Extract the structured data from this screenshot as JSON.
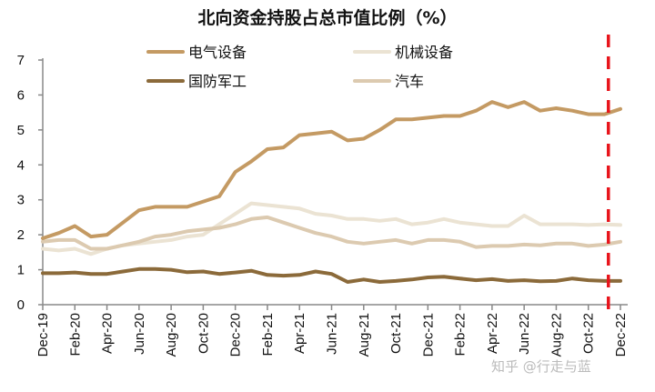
{
  "chart_data": {
    "type": "line",
    "title": "北向资金持股占总市值比例（%）",
    "xlabel": "",
    "ylabel": "",
    "ylim": [
      0,
      7
    ],
    "yticks": [
      0,
      1,
      2,
      3,
      4,
      5,
      6,
      7
    ],
    "x": [
      "Dec-19",
      "Jan-20",
      "Feb-20",
      "Mar-20",
      "Apr-20",
      "May-20",
      "Jun-20",
      "Jul-20",
      "Aug-20",
      "Sep-20",
      "Oct-20",
      "Nov-20",
      "Dec-20",
      "Jan-21",
      "Feb-21",
      "Mar-21",
      "Apr-21",
      "May-21",
      "Jun-21",
      "Jul-21",
      "Aug-21",
      "Sep-21",
      "Oct-21",
      "Nov-21",
      "Dec-21",
      "Jan-22",
      "Feb-22",
      "Mar-22",
      "Apr-22",
      "May-22",
      "Jun-22",
      "Jul-22",
      "Aug-22",
      "Sep-22",
      "Oct-22",
      "Nov-22",
      "Dec-22"
    ],
    "xtick_labels": [
      "Dec-19",
      "Feb-20",
      "Apr-20",
      "Jun-20",
      "Aug-20",
      "Oct-20",
      "Dec-20",
      "Feb-21",
      "Apr-21",
      "Jun-21",
      "Aug-21",
      "Oct-21",
      "Dec-21",
      "Feb-22",
      "Apr-22",
      "Jun-22",
      "Aug-22",
      "Oct-22",
      "Dec-22"
    ],
    "grid": false,
    "legend_placement": "top",
    "series": [
      {
        "name": "电气设备",
        "color": "#c49a63",
        "values": [
          1.9,
          2.05,
          2.25,
          1.95,
          2.0,
          2.35,
          2.7,
          2.8,
          2.8,
          2.8,
          2.95,
          3.1,
          3.8,
          4.1,
          4.45,
          4.5,
          4.85,
          4.9,
          4.95,
          4.7,
          4.75,
          5.0,
          5.3,
          5.3,
          5.35,
          5.4,
          5.4,
          5.55,
          5.8,
          5.65,
          5.8,
          5.55,
          5.62,
          5.55,
          5.45,
          5.45,
          5.6
        ]
      },
      {
        "name": "机械设备",
        "color": "#ebe3d3",
        "values": [
          1.6,
          1.55,
          1.6,
          1.45,
          1.6,
          1.7,
          1.75,
          1.8,
          1.85,
          1.95,
          2.0,
          2.3,
          2.6,
          2.9,
          2.85,
          2.8,
          2.75,
          2.6,
          2.55,
          2.45,
          2.45,
          2.4,
          2.45,
          2.3,
          2.35,
          2.45,
          2.35,
          2.3,
          2.25,
          2.25,
          2.55,
          2.3,
          2.3,
          2.3,
          2.28,
          2.3,
          2.28
        ]
      },
      {
        "name": "国防军工",
        "color": "#8b6a3a",
        "values": [
          0.9,
          0.9,
          0.92,
          0.88,
          0.88,
          0.95,
          1.02,
          1.02,
          1.0,
          0.93,
          0.95,
          0.88,
          0.92,
          0.97,
          0.85,
          0.83,
          0.85,
          0.95,
          0.88,
          0.65,
          0.72,
          0.65,
          0.68,
          0.72,
          0.78,
          0.8,
          0.75,
          0.7,
          0.73,
          0.68,
          0.7,
          0.67,
          0.68,
          0.75,
          0.7,
          0.68,
          0.68
        ]
      },
      {
        "name": "汽车",
        "color": "#dccab0",
        "values": [
          1.8,
          1.85,
          1.85,
          1.6,
          1.6,
          1.7,
          1.8,
          1.95,
          2.0,
          2.1,
          2.15,
          2.2,
          2.3,
          2.45,
          2.5,
          2.35,
          2.2,
          2.05,
          1.95,
          1.8,
          1.75,
          1.8,
          1.85,
          1.75,
          1.85,
          1.85,
          1.8,
          1.65,
          1.68,
          1.68,
          1.72,
          1.7,
          1.75,
          1.75,
          1.68,
          1.72,
          1.8
        ]
      }
    ],
    "annotations": [
      {
        "type": "vertical-dashed-line",
        "color": "#e8141b",
        "x": "Nov-22"
      }
    ]
  },
  "watermark": "知乎 @行走与蓝"
}
